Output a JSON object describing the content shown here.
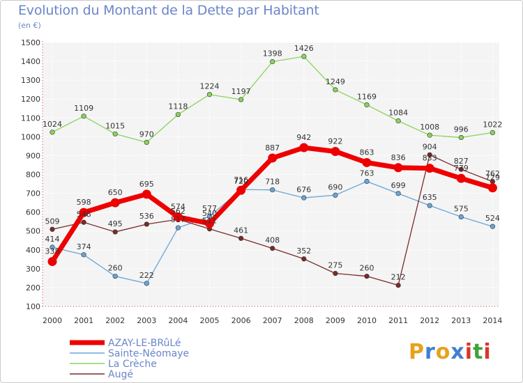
{
  "header": {
    "title": "Evolution du Montant de la Dette par Habitant",
    "unit": "(en €)"
  },
  "logo": {
    "text": "Proxiti",
    "letters": [
      "P",
      "r",
      "o",
      "x",
      "i",
      "t",
      "i"
    ],
    "colors": [
      "#e7a21c",
      "#3f7fd0",
      "#e7a21c",
      "#3f7fd0",
      "#d9352a",
      "#3fa33a",
      "#d9352a"
    ]
  },
  "chart_data": {
    "type": "line",
    "title": "Evolution du Montant de la Dette par Habitant",
    "subtitle": "(en €)",
    "xlabel": "",
    "ylabel": "",
    "x": [
      "2000",
      "2001",
      "2002",
      "2003",
      "2004",
      "2005",
      "2006",
      "2007",
      "2008",
      "2009",
      "2010",
      "2011",
      "2012",
      "2013",
      "2014"
    ],
    "ylim": [
      100,
      1500
    ],
    "yticks": [
      100,
      200,
      300,
      400,
      500,
      600,
      700,
      800,
      900,
      1000,
      1100,
      1200,
      1300,
      1400,
      1500
    ],
    "grid": true,
    "legend_position": "bottom-left",
    "series": [
      {
        "name": "La Crèche",
        "color": "#8ad35c",
        "values": [
          1024,
          1109,
          1015,
          970,
          1118,
          1224,
          1197,
          1398,
          1426,
          1249,
          1169,
          1084,
          1008,
          996,
          1022
        ],
        "labels": [
          "1024",
          "1109",
          "1015",
          "970",
          "1118",
          "1224",
          "1197",
          "1398",
          "1426",
          "1249",
          "1169",
          "1084",
          "1008",
          "996",
          "1022"
        ]
      },
      {
        "name": "Sainte-Néomaye",
        "color": "#6aa5d6",
        "values": [
          414,
          374,
          260,
          222,
          517,
          577,
          720,
          718,
          676,
          690,
          763,
          699,
          635,
          575,
          524
        ],
        "labels": [
          "414",
          "374",
          "260",
          "222",
          "517",
          "577",
          "720",
          "718",
          "676",
          "690",
          "763",
          "699",
          "635",
          "575",
          "524"
        ]
      },
      {
        "name": "Augé",
        "color": "#7a2a2a",
        "values": [
          509,
          546,
          495,
          536,
          562,
          511,
          461,
          408,
          352,
          275,
          260,
          212,
          904,
          827,
          762
        ],
        "labels": [
          "509",
          "546",
          "495",
          "536",
          "562",
          "511",
          "461",
          "408",
          "352",
          "275",
          "260",
          "212",
          "904",
          "827",
          "762"
        ]
      },
      {
        "name": "AZAY-LE-BRûLé",
        "color": "#ee0000",
        "values": [
          338,
          598,
          650,
          695,
          574,
          540,
          716,
          887,
          942,
          922,
          863,
          836,
          833,
          779,
          729
        ],
        "labels": [
          "338",
          "598",
          "650",
          "695",
          "574",
          "540",
          "716",
          "887",
          "942",
          "922",
          "863",
          "836",
          "833",
          "779",
          "729"
        ]
      }
    ]
  }
}
